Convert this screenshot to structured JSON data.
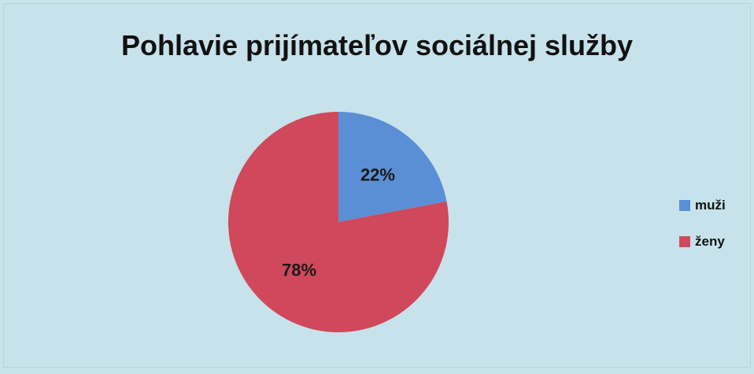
{
  "chart_data": {
    "type": "pie",
    "title": "Pohlavie prijímateľov sociálnej služby",
    "slices": [
      {
        "name": "muži",
        "value": 22,
        "label": "22%",
        "color": "#5b8fd5"
      },
      {
        "name": "ženy",
        "value": 78,
        "label": "78%",
        "color": "#d0485b"
      }
    ],
    "legend_position": "right",
    "start_angle": "top",
    "direction": "clockwise"
  },
  "colors": {
    "background": "#c7e2ea"
  }
}
